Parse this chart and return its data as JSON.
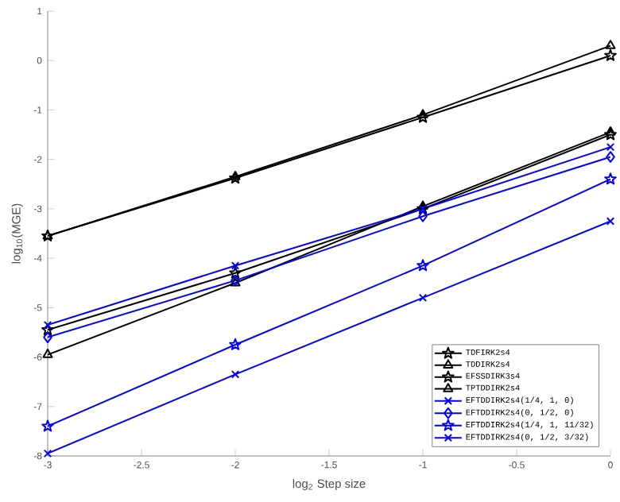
{
  "chart_data": {
    "type": "line",
    "xlabel": "log$_{2}$ Step size",
    "ylabel": "log$_{10}$(MGE)",
    "x": [
      -3,
      -2,
      -1,
      0
    ],
    "series": [
      {
        "name": "TDFIRK2s4",
        "color": "#000000",
        "marker": "star",
        "values": [
          -3.55,
          -2.38,
          -1.15,
          0.1
        ]
      },
      {
        "name": "TDDIRK2s4",
        "color": "#000000",
        "marker": "triangle",
        "values": [
          -3.55,
          -2.35,
          -1.1,
          0.3
        ]
      },
      {
        "name": "EFSSDIRK3s4",
        "color": "#000000",
        "marker": "star",
        "values": [
          -5.45,
          -4.3,
          -3.0,
          -1.5
        ]
      },
      {
        "name": "TPTDDIRK2s4",
        "color": "#000000",
        "marker": "triangle",
        "values": [
          -5.95,
          -4.5,
          -2.95,
          -1.45
        ]
      },
      {
        "name": "EFTDDIRK2s4(1/4, 1, 0)",
        "color": "#0000ff",
        "marker": "cross",
        "values": [
          -5.35,
          -4.15,
          -3.0,
          -1.75
        ]
      },
      {
        "name": "EFTDDIRK2s4(0, 1/2, 0)",
        "color": "#0000ff",
        "marker": "diamond",
        "values": [
          -5.6,
          -4.45,
          -3.15,
          -1.95
        ]
      },
      {
        "name": "EFTDDIRK2s4(1/4, 1, 11/32)",
        "color": "#0000ff",
        "marker": "star",
        "values": [
          -7.4,
          -5.75,
          -4.15,
          -2.4
        ]
      },
      {
        "name": "EFTDDIRK2s4(0, 1/2, 3/32)",
        "color": "#0000ff",
        "marker": "cross",
        "values": [
          -7.95,
          -6.35,
          -4.8,
          -3.25
        ]
      }
    ],
    "xlim": [
      -3,
      0
    ],
    "xticks": [
      -3,
      -2.5,
      -2,
      -1.5,
      -1,
      -0.5,
      0
    ],
    "ylim": [
      -8,
      1
    ],
    "yticks": [
      -8,
      -7,
      -6,
      -5,
      -4,
      -3,
      -2,
      -1,
      0,
      1
    ],
    "grid": false,
    "legend": "bottom right"
  }
}
